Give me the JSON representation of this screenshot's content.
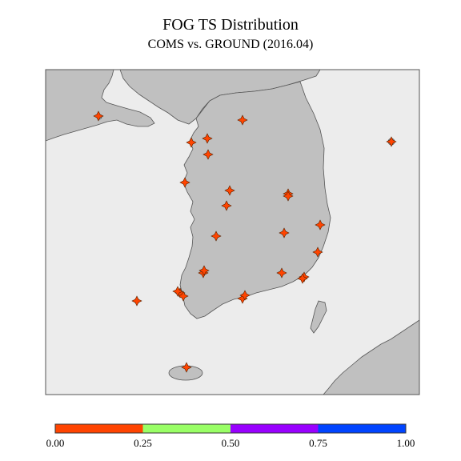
{
  "title": "FOG TS Distribution",
  "subtitle": "COMS vs. GROUND (2016.04)",
  "colors": {
    "sea": "#ececec",
    "land": "#c0c0c0",
    "coast": "#555555",
    "marker": "#ff4400"
  },
  "colorbar": {
    "segments": [
      {
        "from": 0.0,
        "to": 0.25,
        "color": "#ff4400"
      },
      {
        "from": 0.25,
        "to": 0.5,
        "color": "#99ff66"
      },
      {
        "from": 0.5,
        "to": 0.75,
        "color": "#9900ff"
      },
      {
        "from": 0.75,
        "to": 1.0,
        "color": "#0044ff"
      }
    ],
    "ticks": [
      "0.00",
      "0.25",
      "0.50",
      "0.75",
      "1.00"
    ]
  },
  "stations": [
    {
      "id": 1,
      "ts": 0.0
    },
    {
      "id": 2,
      "ts": 0.0
    },
    {
      "id": 3,
      "ts": 0.0
    },
    {
      "id": 4,
      "ts": 0.0
    },
    {
      "id": 5,
      "ts": 0.0
    },
    {
      "id": 6,
      "ts": 0.0
    },
    {
      "id": 7,
      "ts": 0.0
    },
    {
      "id": 8,
      "ts": 0.0
    },
    {
      "id": 9,
      "ts": 0.0
    },
    {
      "id": 10,
      "ts": 0.0
    },
    {
      "id": 11,
      "ts": 0.0
    },
    {
      "id": 12,
      "ts": 0.0
    },
    {
      "id": 13,
      "ts": 0.0
    },
    {
      "id": 14,
      "ts": 0.0
    },
    {
      "id": 15,
      "ts": 0.0
    },
    {
      "id": 16,
      "ts": 0.0
    },
    {
      "id": 17,
      "ts": 0.0
    },
    {
      "id": 18,
      "ts": 0.0
    },
    {
      "id": 19,
      "ts": 0.0
    },
    {
      "id": 20,
      "ts": 0.0
    },
    {
      "id": 21,
      "ts": 0.0
    },
    {
      "id": 22,
      "ts": 0.0
    },
    {
      "id": 23,
      "ts": 0.0
    },
    {
      "id": 24,
      "ts": 0.0
    },
    {
      "id": 25,
      "ts": 0.0
    },
    {
      "id": 26,
      "ts": 0.0
    },
    {
      "id": 27,
      "ts": 0.0
    }
  ]
}
